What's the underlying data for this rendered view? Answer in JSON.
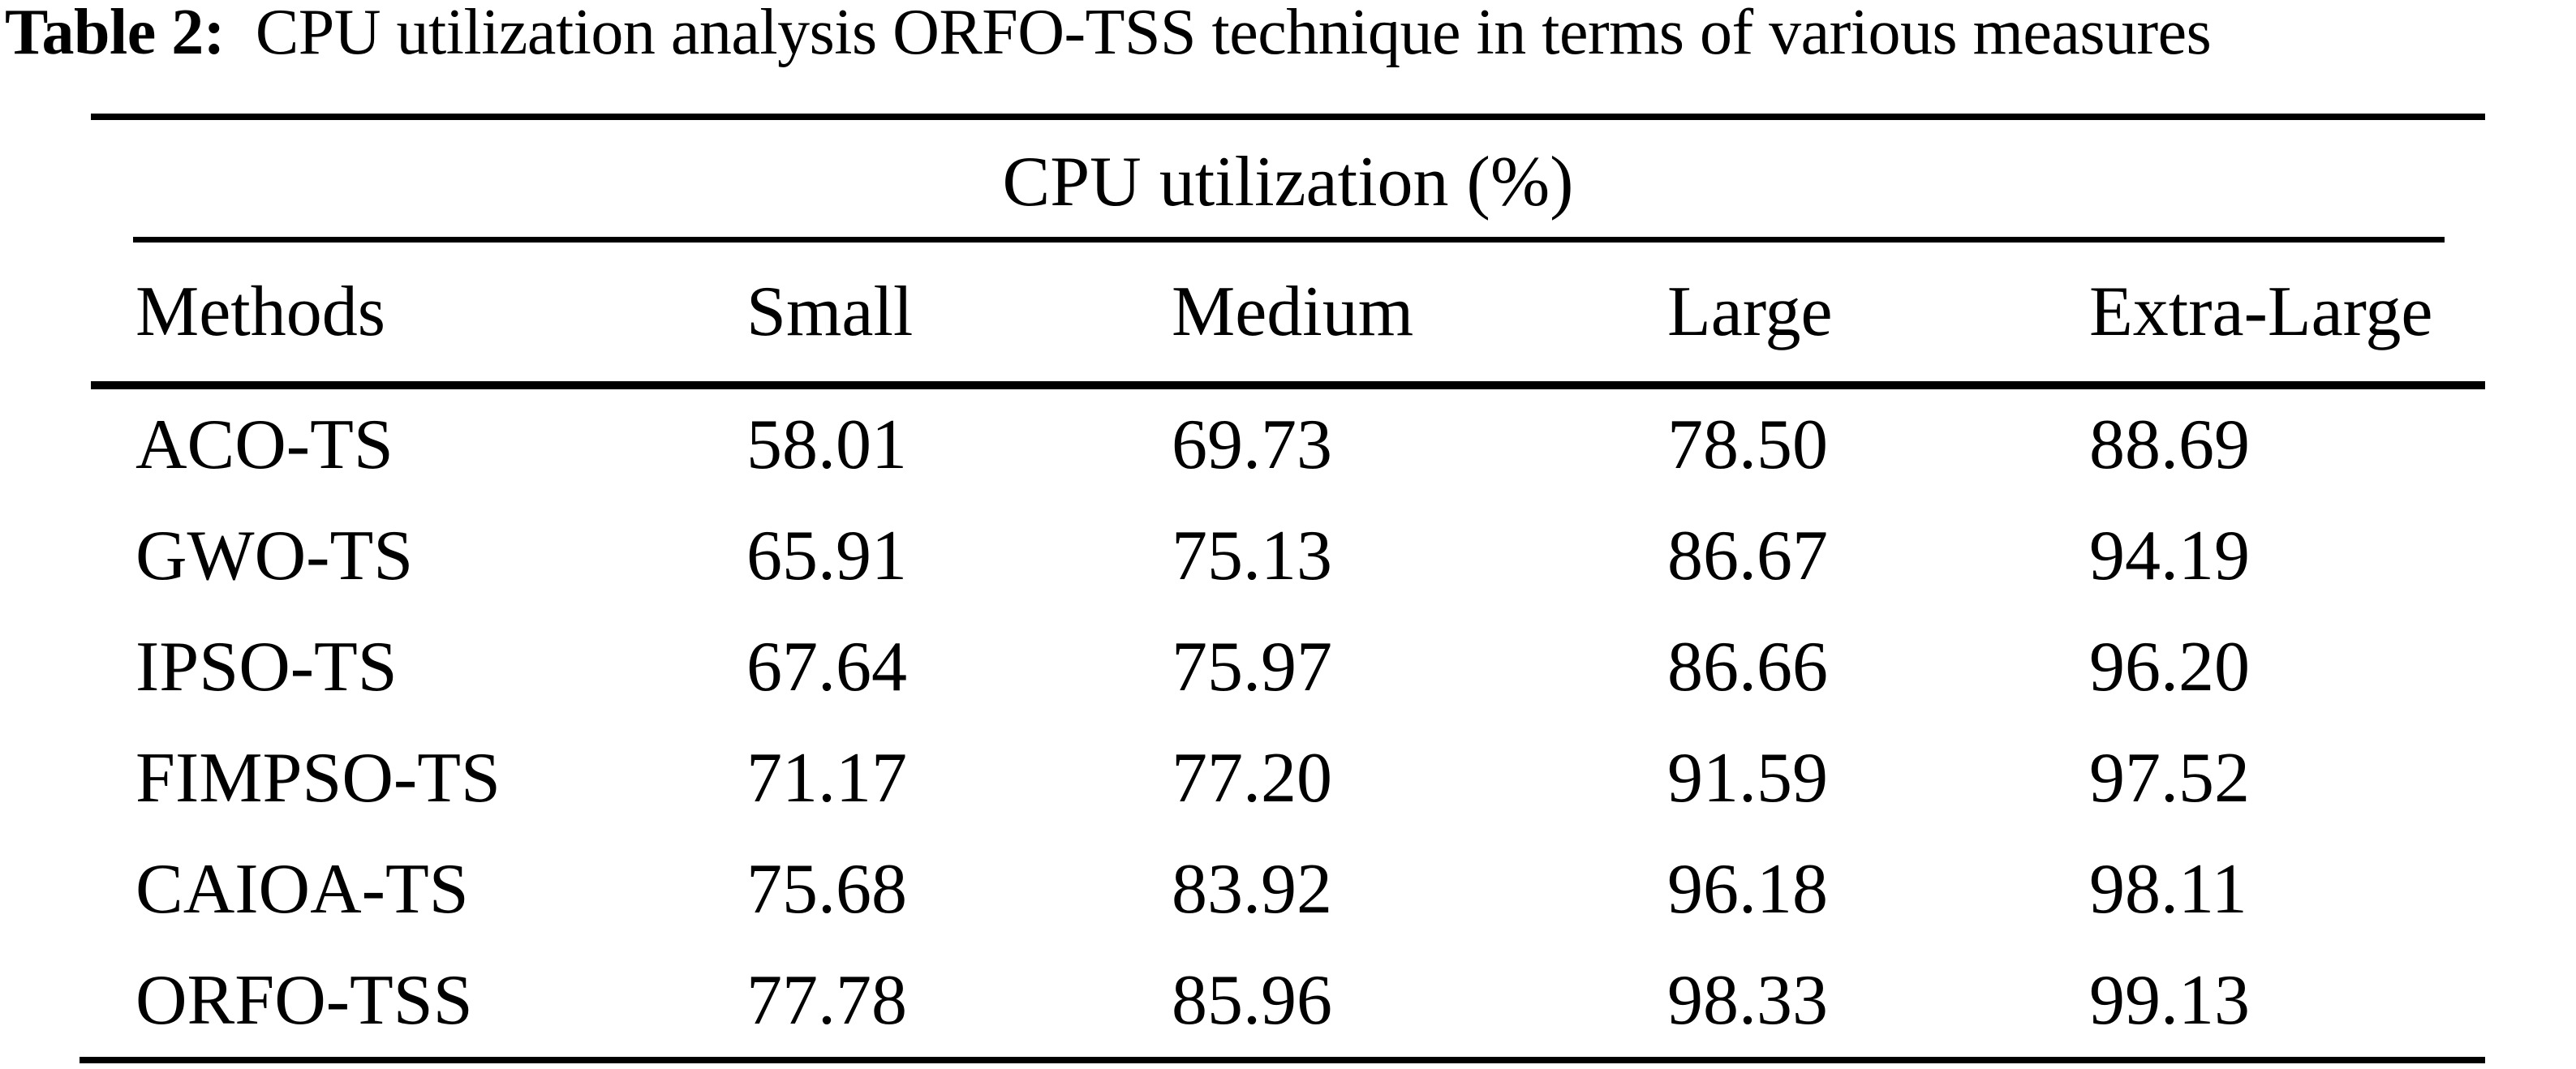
{
  "caption": {
    "label": "Table 2:",
    "text": "CPU utilization analysis ORFO-TSS technique in terms of various measures"
  },
  "chart_data": {
    "type": "table",
    "title": "CPU utilization (%)",
    "columns": [
      "Methods",
      "Small",
      "Medium",
      "Large",
      "Extra-Large"
    ],
    "rows": [
      [
        "ACO-TS",
        "58.01",
        "69.73",
        "78.50",
        "88.69"
      ],
      [
        "GWO-TS",
        "65.91",
        "75.13",
        "86.67",
        "94.19"
      ],
      [
        "IPSO-TS",
        "67.64",
        "75.97",
        "86.66",
        "96.20"
      ],
      [
        "FIMPSO-TS",
        "71.17",
        "77.20",
        "91.59",
        "97.52"
      ],
      [
        "CAIOA-TS",
        "75.68",
        "83.92",
        "96.18",
        "98.11"
      ],
      [
        "ORFO-TSS",
        "77.78",
        "85.96",
        "98.33",
        "99.13"
      ]
    ],
    "layout": {
      "unit": "percent",
      "grid": "off",
      "value_columns": [
        "Small",
        "Medium",
        "Large",
        "Extra-Large"
      ]
    },
    "colors": {
      "text": "#000000",
      "background": "#ffffff",
      "rules": "#000000"
    }
  }
}
